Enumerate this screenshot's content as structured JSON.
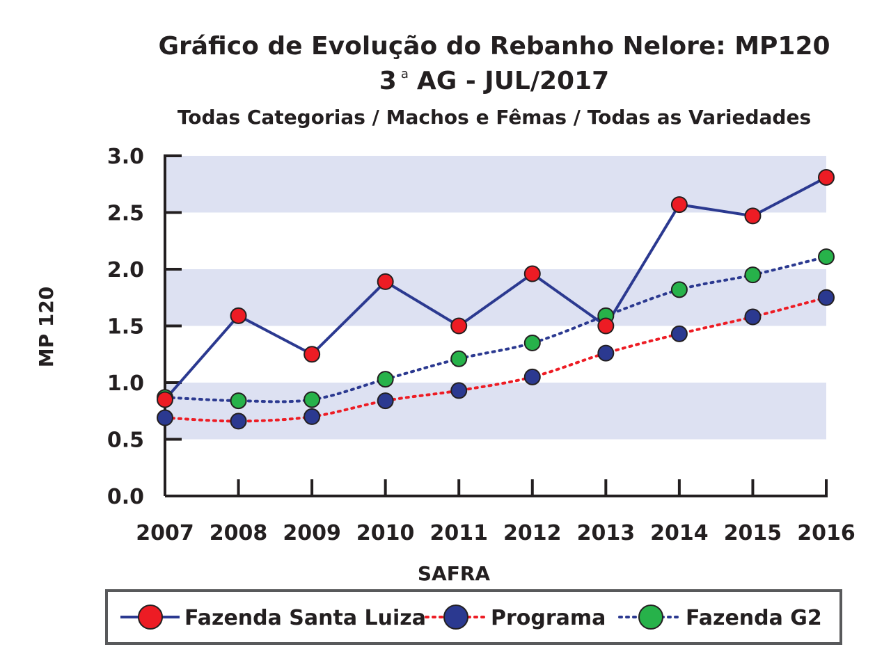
{
  "chart_data": {
    "type": "line",
    "title": "Gráfico de Evolução do Rebanho Nelore: MP120",
    "title_line2_prefix": "3",
    "title_line2_sup": "a",
    "title_line2_suffix": "AG - JUL/2017",
    "subtitle": "Todas Categorias / Machos e Fêmas / Todas as Variedades",
    "xlabel": "SAFRA",
    "ylabel": "MP 120",
    "ylim": [
      0,
      3
    ],
    "yticks": [
      "0.0",
      "0.5",
      "1.0",
      "1.5",
      "2.0",
      "2.5",
      "3.0"
    ],
    "x": [
      "2007",
      "2008",
      "2009",
      "2010",
      "2011",
      "2012",
      "2013",
      "2014",
      "2015",
      "2016"
    ],
    "bands": "alternating light blue bands 0.5-1.0, 1.5-2.0, 2.5-3.0",
    "band_color": "#dde1f2",
    "legend_position": "bottom",
    "series": [
      {
        "name": "Fazenda Santa Luiza",
        "values": [
          0.85,
          1.59,
          1.25,
          1.89,
          1.5,
          1.96,
          1.5,
          2.57,
          2.47,
          2.81
        ],
        "line_color": "#2b3990",
        "marker_color": "#ed1c24",
        "line_style": "solid"
      },
      {
        "name": "Programa",
        "values": [
          0.69,
          0.66,
          0.7,
          0.84,
          0.93,
          1.05,
          1.26,
          1.43,
          1.58,
          1.75
        ],
        "line_color": "#ed1c24",
        "marker_color": "#2b3990",
        "line_style": "dotted"
      },
      {
        "name": "Fazenda G2",
        "values": [
          0.87,
          0.84,
          0.85,
          1.03,
          1.21,
          1.35,
          1.59,
          1.82,
          1.95,
          2.11
        ],
        "line_color": "#2b3990",
        "marker_color": "#27b24a",
        "line_style": "dotted"
      }
    ]
  }
}
